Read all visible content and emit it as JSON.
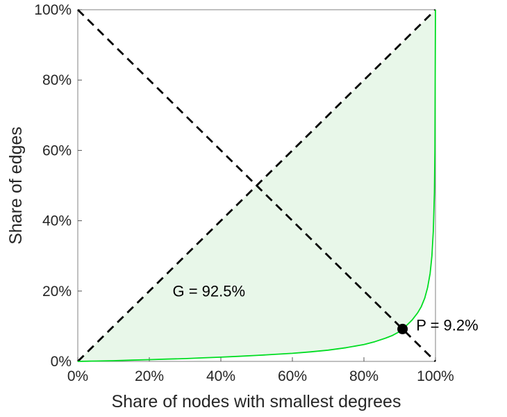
{
  "chart_data": {
    "type": "line",
    "title": "",
    "xlabel": "Share of nodes with smallest degrees",
    "ylabel": "Share of edges",
    "xlim": [
      0,
      100
    ],
    "ylim": [
      0,
      100
    ],
    "grid": false,
    "legend": "none",
    "axis_color": "#808080",
    "tick_color": "#555555",
    "area_fill": "#e8f7e9",
    "x_tick_values": [
      0,
      20,
      40,
      60,
      80,
      100
    ],
    "x_tick_labels": [
      "0%",
      "20%",
      "40%",
      "60%",
      "80%",
      "100%"
    ],
    "y_tick_values": [
      0,
      20,
      40,
      60,
      80,
      100
    ],
    "y_tick_labels": [
      "0%",
      "20%",
      "40%",
      "60%",
      "80%",
      "100%"
    ],
    "series": [
      {
        "name": "equality-line",
        "x": [
          0,
          100
        ],
        "y": [
          0,
          100
        ],
        "color": "#000000",
        "width": 2.8,
        "dash": "12 8"
      },
      {
        "name": "anti-diagonal",
        "x": [
          0,
          100
        ],
        "y": [
          100,
          0
        ],
        "color": "#000000",
        "width": 2.8,
        "dash": "12 8"
      },
      {
        "name": "lorenz-curve",
        "x": [
          0,
          5,
          10,
          15,
          20,
          25,
          30,
          35,
          40,
          45,
          50,
          55,
          60,
          65,
          70,
          75,
          80,
          83,
          86,
          88,
          90,
          90.8,
          92,
          93.5,
          95,
          96,
          97,
          97.8,
          98.5,
          99,
          99.4,
          99.7,
          99.85,
          100
        ],
        "y": [
          0,
          0.1,
          0.2,
          0.35,
          0.5,
          0.65,
          0.8,
          1.0,
          1.2,
          1.45,
          1.7,
          2.0,
          2.3,
          2.7,
          3.2,
          3.9,
          4.8,
          5.6,
          6.6,
          7.4,
          8.5,
          9.2,
          10.3,
          11.8,
          13.8,
          15.5,
          18,
          21,
          25,
          30,
          37,
          48,
          60,
          100
        ],
        "color": "#00dd22",
        "width": 1.8
      }
    ],
    "point": {
      "x": 90.8,
      "y": 9.2,
      "color": "#000000",
      "radius": 7.5
    },
    "annotations": [
      {
        "name": "gini-annotation",
        "text": "G = 92.5%",
        "x": 26.5,
        "y": 18.5
      },
      {
        "name": "p-annotation",
        "text": "P = 9.2%",
        "x": 94.6,
        "y": 8.8
      }
    ],
    "gini": "92.5%",
    "p_value": "9.2%"
  }
}
